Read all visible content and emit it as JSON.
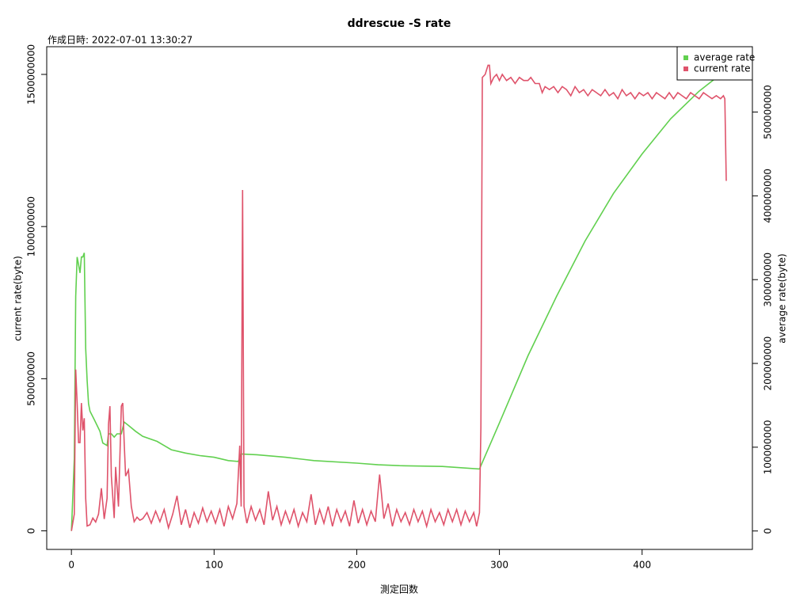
{
  "chart_data": {
    "type": "line",
    "title": "ddrescue -S rate",
    "subtitle": "作成日時: 2022-07-01 13:30:27",
    "xlabel": "測定回数",
    "ylabel": "current rate(byte)",
    "y2label": "average rate(byte)",
    "xlim": [
      -17.3,
      477.3
    ],
    "xticks": [
      0,
      100,
      200,
      300,
      400
    ],
    "ylim": [
      -61000000,
      1591000000
    ],
    "yticks": [
      0,
      500000000,
      1000000000,
      1500000000
    ],
    "y2lim": [
      -22000000,
      578000000
    ],
    "y2ticks": [
      0,
      100000000,
      200000000,
      300000000,
      400000000,
      500000000
    ],
    "legend": "topright",
    "series": [
      {
        "name": "average rate",
        "color": "#61D04F",
        "axis": "y2",
        "x": [
          0,
          2,
          3,
          4,
          5,
          6,
          7,
          8,
          9,
          10,
          11,
          12,
          13,
          16,
          20,
          22,
          24,
          25,
          26,
          28,
          30,
          32,
          35,
          37,
          40,
          45,
          50,
          60,
          65,
          70,
          80,
          90,
          100,
          110,
          117,
          119,
          130,
          150,
          170,
          200,
          215,
          230,
          260,
          286,
          300,
          320,
          340,
          360,
          380,
          400,
          420,
          440,
          452,
          459
        ],
        "values": [
          0,
          86000000,
          280000000,
          327000000,
          318000000,
          308000000,
          327000000,
          327000000,
          332000000,
          218000000,
          180000000,
          152000000,
          143000000,
          133000000,
          119000000,
          105000000,
          103000000,
          102000000,
          116000000,
          116000000,
          112000000,
          116000000,
          116000000,
          130000000,
          126000000,
          119000000,
          113000000,
          107000000,
          102000000,
          97000000,
          93000000,
          90000000,
          88000000,
          84000000,
          83000000,
          92000000,
          91000000,
          88000000,
          84000000,
          81000000,
          79000000,
          78000000,
          77000000,
          74000000,
          129000000,
          209000000,
          280000000,
          346000000,
          403000000,
          450000000,
          492000000,
          525000000,
          541000000,
          548000000
        ]
      },
      {
        "name": "current rate",
        "color": "#DF536B",
        "x": [
          0,
          2,
          3,
          4,
          5,
          6,
          7,
          8,
          9,
          10,
          11,
          13,
          15,
          17,
          19,
          21,
          23,
          25,
          26,
          27,
          28,
          30,
          31,
          33,
          35,
          36,
          37,
          38,
          40,
          42,
          44,
          46,
          48,
          50,
          53,
          56,
          59,
          62,
          65,
          68,
          71,
          74,
          77,
          80,
          83,
          86,
          89,
          92,
          95,
          98,
          101,
          104,
          107,
          110,
          113,
          116,
          118,
          119,
          120,
          121,
          123,
          126,
          129,
          132,
          135,
          138,
          141,
          144,
          147,
          150,
          153,
          156,
          159,
          162,
          165,
          168,
          171,
          174,
          177,
          180,
          183,
          186,
          189,
          192,
          195,
          198,
          201,
          204,
          207,
          210,
          213,
          216,
          219,
          222,
          225,
          228,
          231,
          234,
          237,
          240,
          243,
          246,
          249,
          252,
          255,
          258,
          261,
          264,
          267,
          270,
          273,
          276,
          279,
          282,
          284,
          286,
          287,
          288,
          290,
          292,
          293,
          294,
          296,
          298,
          300,
          302,
          305,
          308,
          311,
          314,
          317,
          320,
          322,
          325,
          328,
          330,
          332,
          335,
          338,
          341,
          344,
          347,
          350,
          353,
          356,
          359,
          362,
          365,
          368,
          371,
          374,
          377,
          380,
          383,
          386,
          389,
          392,
          395,
          398,
          401,
          404,
          407,
          410,
          413,
          416,
          419,
          422,
          425,
          428,
          431,
          434,
          437,
          440,
          443,
          446,
          449,
          452,
          455,
          457,
          458,
          459
        ],
        "values": [
          0,
          55000000,
          530000000,
          420000000,
          290000000,
          290000000,
          420000000,
          330000000,
          370000000,
          107000000,
          16000000,
          20000000,
          42000000,
          29000000,
          55000000,
          140000000,
          39000000,
          107000000,
          350000000,
          410000000,
          180000000,
          42000000,
          210000000,
          80000000,
          410000000,
          420000000,
          290000000,
          180000000,
          200000000,
          80000000,
          30000000,
          45000000,
          35000000,
          40000000,
          60000000,
          25000000,
          65000000,
          30000000,
          70000000,
          10000000,
          55000000,
          115000000,
          20000000,
          70000000,
          10000000,
          60000000,
          25000000,
          75000000,
          30000000,
          65000000,
          25000000,
          70000000,
          15000000,
          80000000,
          40000000,
          90000000,
          280000000,
          80000000,
          1120000000,
          80000000,
          25000000,
          80000000,
          35000000,
          70000000,
          20000000,
          130000000,
          35000000,
          80000000,
          20000000,
          65000000,
          25000000,
          70000000,
          15000000,
          60000000,
          30000000,
          120000000,
          20000000,
          70000000,
          25000000,
          80000000,
          15000000,
          70000000,
          30000000,
          65000000,
          15000000,
          100000000,
          25000000,
          70000000,
          20000000,
          65000000,
          30000000,
          185000000,
          40000000,
          90000000,
          15000000,
          70000000,
          30000000,
          60000000,
          20000000,
          70000000,
          30000000,
          65000000,
          15000000,
          70000000,
          30000000,
          60000000,
          20000000,
          70000000,
          30000000,
          70000000,
          20000000,
          65000000,
          30000000,
          60000000,
          15000000,
          60000000,
          340000000,
          1490000000,
          1500000000,
          1530000000,
          1530000000,
          1470000000,
          1490000000,
          1500000000,
          1480000000,
          1500000000,
          1480000000,
          1490000000,
          1470000000,
          1490000000,
          1480000000,
          1480000000,
          1490000000,
          1470000000,
          1470000000,
          1440000000,
          1460000000,
          1450000000,
          1460000000,
          1440000000,
          1460000000,
          1450000000,
          1430000000,
          1460000000,
          1440000000,
          1450000000,
          1430000000,
          1450000000,
          1440000000,
          1430000000,
          1450000000,
          1430000000,
          1440000000,
          1420000000,
          1450000000,
          1430000000,
          1440000000,
          1420000000,
          1440000000,
          1430000000,
          1440000000,
          1420000000,
          1440000000,
          1430000000,
          1420000000,
          1440000000,
          1420000000,
          1440000000,
          1430000000,
          1420000000,
          1440000000,
          1430000000,
          1420000000,
          1440000000,
          1430000000,
          1420000000,
          1430000000,
          1420000000,
          1430000000,
          1420000000,
          1150000000
        ]
      }
    ]
  }
}
